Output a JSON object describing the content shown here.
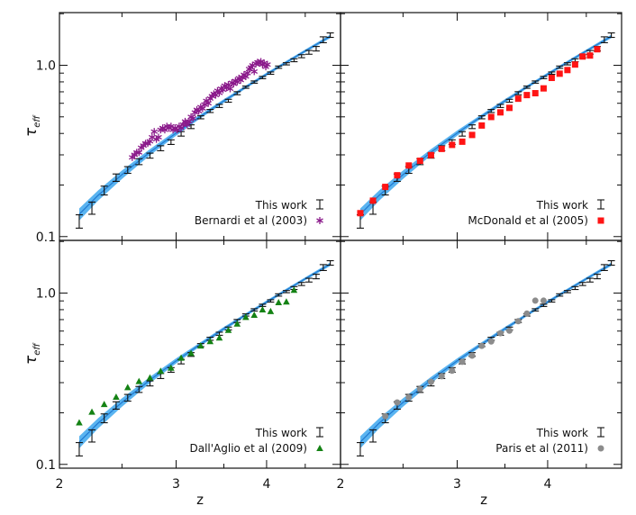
{
  "figure": {
    "ylabel_main": "τ",
    "ylabel_sub": "eff",
    "xlabel": "z",
    "colors": {
      "band": "#5ab4f0",
      "fit_line": "#1f78d0",
      "this_work": "#111111",
      "bernardi": "#8b1a8b",
      "mcdonald": "#ff1414",
      "dallaglio": "#148214",
      "paris": "#8c8c8c"
    }
  },
  "chart_data": [
    {
      "type": "scatter",
      "panel": "top-left",
      "xscale": "log(1+z)",
      "yscale": "log",
      "xlim": [
        2,
        5
      ],
      "ylim": [
        0.095,
        2.03
      ],
      "xticks": [
        2,
        3,
        4
      ],
      "xtick_labels": [
        "2",
        "3",
        "4"
      ],
      "xminor": [
        2.5,
        3.5,
        4.5
      ],
      "yticks": [
        0.1,
        1.0
      ],
      "ytick_labels": [
        "0.1",
        "1.0"
      ],
      "yminor": [
        0.2,
        0.3,
        0.4,
        0.5,
        0.6,
        0.7,
        0.8,
        0.9,
        2
      ],
      "show_xlabels": false,
      "show_ylabels": true,
      "legend_placement": "bottom-right",
      "legend": [
        "This work",
        "Bernardi et al (2003)"
      ],
      "comparison": {
        "name": "Bernardi et al (2003)",
        "marker": "asterisk",
        "color_key": "bernardi",
        "x": [
          2.59,
          2.61,
          2.63,
          2.65,
          2.67,
          2.69,
          2.71,
          2.73,
          2.75,
          2.77,
          2.79,
          2.81,
          2.83,
          2.85,
          2.87,
          2.89,
          2.91,
          2.93,
          2.95,
          2.97,
          2.99,
          3.01,
          3.03,
          3.05,
          3.07,
          3.09,
          3.11,
          3.13,
          3.15,
          3.17,
          3.19,
          3.21,
          3.23,
          3.25,
          3.27,
          3.29,
          3.31,
          3.33,
          3.35,
          3.37,
          3.39,
          3.41,
          3.43,
          3.45,
          3.47,
          3.49,
          3.51,
          3.53,
          3.55,
          3.57,
          3.59,
          3.61,
          3.63,
          3.65,
          3.67,
          3.69,
          3.71,
          3.73,
          3.75,
          3.77,
          3.79,
          3.81,
          3.83,
          3.85,
          3.87,
          3.89,
          3.91,
          3.93,
          3.95,
          3.97,
          3.99,
          4.01
        ],
        "y": [
          0.29,
          0.3,
          0.31,
          0.31,
          0.33,
          0.34,
          0.35,
          0.35,
          0.36,
          0.38,
          0.41,
          0.37,
          0.38,
          0.42,
          0.43,
          0.42,
          0.44,
          0.43,
          0.44,
          0.42,
          0.43,
          0.42,
          0.44,
          0.43,
          0.45,
          0.47,
          0.45,
          0.47,
          0.5,
          0.49,
          0.53,
          0.55,
          0.54,
          0.57,
          0.56,
          0.59,
          0.62,
          0.6,
          0.64,
          0.66,
          0.68,
          0.67,
          0.71,
          0.69,
          0.73,
          0.72,
          0.76,
          0.74,
          0.77,
          0.73,
          0.79,
          0.78,
          0.81,
          0.8,
          0.84,
          0.82,
          0.85,
          0.88,
          0.86,
          0.9,
          0.95,
          0.97,
          1.0,
          0.92,
          1.02,
          1.04,
          1.03,
          1.05,
          1.01,
          1.03,
          0.98,
          1.01
        ]
      }
    },
    {
      "type": "scatter",
      "panel": "top-right",
      "xscale": "log(1+z)",
      "yscale": "log",
      "xlim": [
        2,
        5
      ],
      "ylim": [
        0.095,
        2.03
      ],
      "xticks": [
        2,
        3,
        4
      ],
      "xtick_labels": [
        "2",
        "3",
        "4"
      ],
      "xminor": [
        2.5,
        3.5,
        4.5
      ],
      "yticks": [
        0.1,
        1.0
      ],
      "ytick_labels": [
        "0.1",
        "1.0"
      ],
      "yminor": [
        0.2,
        0.3,
        0.4,
        0.5,
        0.6,
        0.7,
        0.8,
        0.9,
        2
      ],
      "show_xlabels": false,
      "show_ylabels": false,
      "legend_placement": "bottom-right",
      "legend": [
        "This work",
        "McDonald et al (2005)"
      ],
      "comparison": {
        "name": "McDonald et al (2005)",
        "marker": "square",
        "color_key": "mcdonald",
        "x": [
          2.15,
          2.25,
          2.35,
          2.45,
          2.55,
          2.65,
          2.75,
          2.85,
          2.95,
          3.05,
          3.15,
          3.25,
          3.35,
          3.45,
          3.55,
          3.65,
          3.75,
          3.85,
          3.95,
          4.05,
          4.15,
          4.25,
          4.35,
          4.45,
          4.55,
          4.65
        ],
        "y": [
          0.137,
          0.162,
          0.195,
          0.228,
          0.26,
          0.277,
          0.299,
          0.325,
          0.343,
          0.358,
          0.392,
          0.445,
          0.499,
          0.531,
          0.564,
          0.638,
          0.67,
          0.687,
          0.733,
          0.844,
          0.893,
          0.938,
          1.01,
          1.125,
          1.14,
          1.24
        ]
      }
    },
    {
      "type": "scatter",
      "panel": "bottom-left",
      "xscale": "log(1+z)",
      "yscale": "log",
      "xlim": [
        2,
        5
      ],
      "ylim": [
        0.095,
        2.03
      ],
      "xticks": [
        2,
        3,
        4
      ],
      "xtick_labels": [
        "2",
        "3",
        "4"
      ],
      "xminor": [
        2.5,
        3.5,
        4.5
      ],
      "yticks": [
        0.1,
        1.0
      ],
      "ytick_labels": [
        "0.1",
        "1.0"
      ],
      "yminor": [
        0.2,
        0.3,
        0.4,
        0.5,
        0.6,
        0.7,
        0.8,
        0.9,
        2
      ],
      "show_xlabels": true,
      "show_ylabels": true,
      "legend_placement": "bottom-right",
      "legend": [
        "This work",
        "Dall'Aglio et al (2009)"
      ],
      "comparison": {
        "name": "Dall'Aglio et al (2009)",
        "marker": "triangle",
        "color_key": "dallaglio",
        "x": [
          2.15,
          2.25,
          2.35,
          2.45,
          2.55,
          2.65,
          2.75,
          2.85,
          2.95,
          3.05,
          3.15,
          3.25,
          3.35,
          3.45,
          3.55,
          3.65,
          3.75,
          3.85,
          3.95,
          4.05,
          4.15,
          4.25,
          4.35
        ],
        "y": [
          0.175,
          0.202,
          0.224,
          0.247,
          0.281,
          0.305,
          0.32,
          0.35,
          0.365,
          0.418,
          0.445,
          0.492,
          0.522,
          0.548,
          0.607,
          0.661,
          0.722,
          0.743,
          0.8,
          0.782,
          0.881,
          0.889,
          1.04
        ]
      }
    },
    {
      "type": "scatter",
      "panel": "bottom-right",
      "xscale": "log(1+z)",
      "yscale": "log",
      "xlim": [
        2,
        5
      ],
      "ylim": [
        0.095,
        2.03
      ],
      "xticks": [
        2,
        3,
        4
      ],
      "xtick_labels": [
        "2",
        "3",
        "4"
      ],
      "xminor": [
        2.5,
        3.5,
        4.5
      ],
      "yticks": [
        0.1,
        1.0
      ],
      "ytick_labels": [
        "0.1",
        "1.0"
      ],
      "yminor": [
        0.2,
        0.3,
        0.4,
        0.5,
        0.6,
        0.7,
        0.8,
        0.9,
        2
      ],
      "show_xlabels": true,
      "show_ylabels": false,
      "legend_placement": "bottom-right",
      "legend": [
        "This work",
        "Paris et al (2011)"
      ],
      "comparison": {
        "name": "Paris et al (2011)",
        "marker": "circle",
        "color_key": "paris",
        "x": [
          2.35,
          2.45,
          2.55,
          2.65,
          2.75,
          2.85,
          2.95,
          3.05,
          3.15,
          3.25,
          3.35,
          3.45,
          3.55,
          3.65,
          3.75,
          3.85,
          3.95
        ],
        "y": [
          0.191,
          0.23,
          0.246,
          0.275,
          0.303,
          0.327,
          0.352,
          0.397,
          0.431,
          0.492,
          0.522,
          0.583,
          0.603,
          0.685,
          0.759,
          0.903,
          0.903
        ]
      }
    }
  ],
  "this_work": {
    "name": "This work",
    "x": [
      2.15,
      2.25,
      2.35,
      2.45,
      2.55,
      2.65,
      2.75,
      2.85,
      2.95,
      3.05,
      3.15,
      3.25,
      3.35,
      3.45,
      3.55,
      3.65,
      3.75,
      3.85,
      3.95,
      4.05,
      4.15,
      4.25,
      4.35,
      4.45,
      4.55,
      4.65,
      4.75,
      4.85
    ],
    "y": [
      0.123,
      0.147,
      0.186,
      0.221,
      0.245,
      0.274,
      0.297,
      0.328,
      0.356,
      0.398,
      0.438,
      0.497,
      0.541,
      0.579,
      0.621,
      0.687,
      0.745,
      0.798,
      0.848,
      0.9,
      0.975,
      1.02,
      1.07,
      1.13,
      1.19,
      1.25,
      1.41,
      1.5
    ],
    "err": [
      0.011,
      0.012,
      0.011,
      0.011,
      0.011,
      0.011,
      0.01,
      0.011,
      0.011,
      0.012,
      0.011,
      0.01,
      0.011,
      0.012,
      0.012,
      0.014,
      0.011,
      0.012,
      0.013,
      0.014,
      0.015,
      0.015,
      0.021,
      0.023,
      0.03,
      0.038,
      0.056,
      0.045
    ]
  },
  "fit_band": {
    "x": [
      2.15,
      2.3,
      2.5,
      2.75,
      3.0,
      3.25,
      3.5,
      3.75,
      4.0,
      4.25,
      4.5,
      4.85
    ],
    "fit": [
      0.135,
      0.174,
      0.23,
      0.311,
      0.402,
      0.504,
      0.619,
      0.747,
      0.887,
      1.042,
      1.212,
      1.475
    ],
    "lower": [
      0.124,
      0.162,
      0.217,
      0.298,
      0.388,
      0.491,
      0.604,
      0.731,
      0.869,
      1.021,
      1.188,
      1.44
    ],
    "upper": [
      0.146,
      0.186,
      0.243,
      0.324,
      0.416,
      0.517,
      0.634,
      0.763,
      0.905,
      1.063,
      1.236,
      1.51
    ]
  }
}
